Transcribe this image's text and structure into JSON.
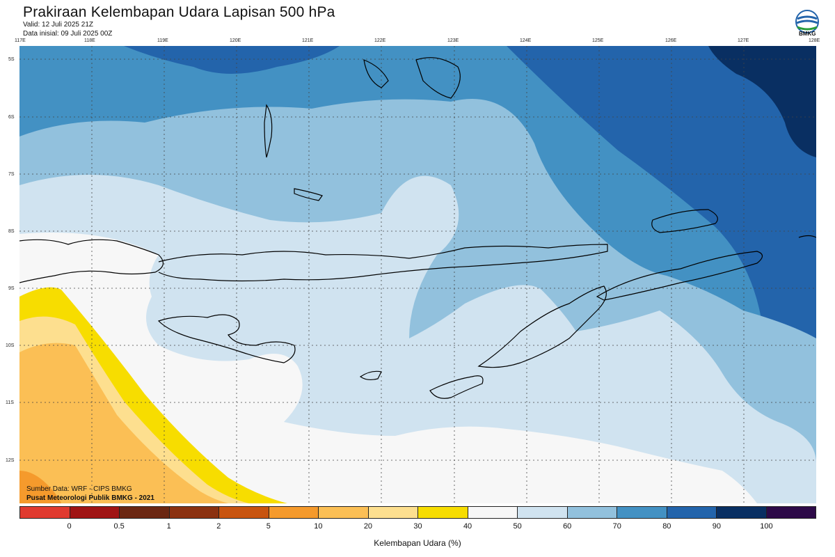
{
  "header": {
    "title": "Prakiraan Kelembapan Udara Lapisan 500 hPa",
    "valid": "Valid: 12 Juli 2025 21Z",
    "init": "Data inisial: 09 Juli 2025 00Z"
  },
  "logo": {
    "text": "BMKG",
    "icon": "bmkg-logo-icon"
  },
  "axes": {
    "x_ticks": [
      "117E",
      "118E",
      "119E",
      "120E",
      "121E",
      "122E",
      "123E",
      "124E",
      "125E",
      "126E",
      "127E",
      "128E"
    ],
    "y_ticks": [
      "5S",
      "6S",
      "7S",
      "8S",
      "9S",
      "10S",
      "11S",
      "12S"
    ]
  },
  "credits": {
    "source": "Sumber Data: WRF - CIPS BMKG",
    "org": "Pusat Meteorologi Publik BMKG - 2021"
  },
  "colorbar": {
    "title": "Kelembapan Udara (%)",
    "labels": [
      "0",
      "0.5",
      "1",
      "2",
      "5",
      "10",
      "20",
      "30",
      "40",
      "50",
      "60",
      "70",
      "80",
      "90",
      "100"
    ],
    "colors": [
      "#e03a2f",
      "#a01414",
      "#6b2712",
      "#8b3110",
      "#c8540f",
      "#f59a2c",
      "#fbbf55",
      "#fddf8f",
      "#f7dd00",
      "#f7f7f7",
      "#d0e3f0",
      "#92c1dd",
      "#4391c3",
      "#2364ab",
      "#092f62",
      "#2d0a48"
    ]
  },
  "map_colors": {
    "land_outline": "#000000",
    "grid": "#444444"
  }
}
